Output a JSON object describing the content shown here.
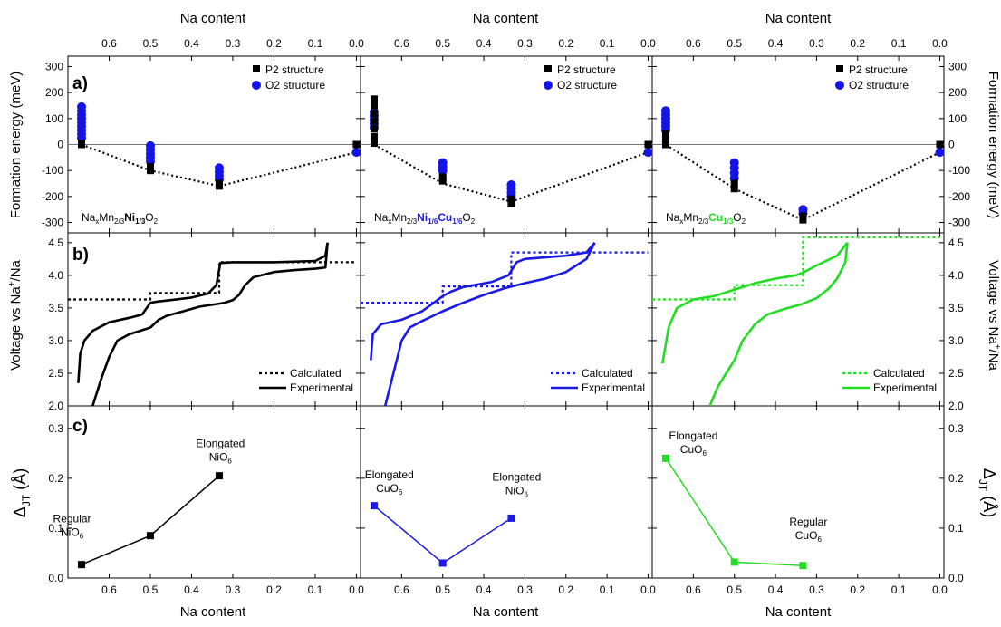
{
  "figure": {
    "top_xlabel": "Na content",
    "bottom_xlabel": "Na content",
    "panel_letters": [
      "a)",
      "b)",
      "c)"
    ],
    "ylabels": {
      "formation": "Formation energy (meV)",
      "voltage_pre": "Voltage vs Na",
      "voltage_sup": "+",
      "voltage_post": "/Na",
      "dist_main": "Δ",
      "dist_sub": "JT",
      "dist_unit": " (Å)"
    },
    "x_ticks": [
      "0.6",
      "0.5",
      "0.4",
      "0.3",
      "0.2",
      "0.1",
      "0.0"
    ],
    "formation_ticks": [
      "300",
      "200",
      "100",
      "0",
      "-100",
      "-200",
      "-300"
    ],
    "voltage_ticks": [
      "4.5",
      "4.0",
      "3.5",
      "3.0",
      "2.5",
      "2.0"
    ],
    "dist_ticks": [
      "0.3",
      "0.2",
      "0.1",
      "0.0"
    ],
    "legend_a": {
      "p2": "P2 structure",
      "o2": "O2 structure"
    },
    "legend_b": {
      "calc": "Calculated",
      "exp": "Experimental"
    }
  },
  "compositions": [
    {
      "parts": [
        [
          "Na",
          "n"
        ],
        [
          "x",
          "sub"
        ],
        [
          "Mn",
          "n"
        ],
        [
          "2/3",
          "sub"
        ],
        [
          "Ni",
          "b"
        ],
        [
          "1/3",
          "bsub"
        ],
        [
          "O",
          "n"
        ],
        [
          "2",
          "sub"
        ]
      ],
      "color": "#000000"
    },
    {
      "parts": [
        [
          "Na",
          "n"
        ],
        [
          "x",
          "sub"
        ],
        [
          "Mn",
          "n"
        ],
        [
          "2/3",
          "sub"
        ],
        [
          "Ni",
          "b"
        ],
        [
          "1/6",
          "bsub"
        ],
        [
          "Cu",
          "b"
        ],
        [
          "1/6",
          "bsub"
        ],
        [
          "O",
          "n"
        ],
        [
          "2",
          "sub"
        ]
      ],
      "color": "#1a1ae6"
    },
    {
      "parts": [
        [
          "Na",
          "n"
        ],
        [
          "x",
          "sub"
        ],
        [
          "Mn",
          "n"
        ],
        [
          "2/3",
          "sub"
        ],
        [
          "Cu",
          "b"
        ],
        [
          "1/3",
          "bsub"
        ],
        [
          "O",
          "n"
        ],
        [
          "2",
          "sub"
        ]
      ],
      "color": "#22dd22"
    }
  ],
  "chart_data": [
    {
      "type": "scatter",
      "panel": "a",
      "ylabel": "Formation energy (meV)",
      "xlim": [
        0.7,
        -0.01
      ],
      "ylim": [
        -340,
        340
      ],
      "columns": [
        {
          "color": "#000000",
          "p2": [
            [
              0.667,
              0
            ],
            [
              0.667,
              5
            ],
            [
              0.5,
              -100
            ],
            [
              0.5,
              -85
            ],
            [
              0.333,
              -160
            ],
            [
              0.333,
              -150
            ],
            [
              0,
              0
            ]
          ],
          "o2": [
            [
              0.667,
              145
            ],
            [
              0.667,
              130
            ],
            [
              0.667,
              115
            ],
            [
              0.667,
              100
            ],
            [
              0.667,
              85
            ],
            [
              0.667,
              70
            ],
            [
              0.667,
              55
            ],
            [
              0.667,
              40
            ],
            [
              0.667,
              25
            ],
            [
              0.5,
              -5
            ],
            [
              0.5,
              -20
            ],
            [
              0.5,
              -35
            ],
            [
              0.5,
              -50
            ],
            [
              0.5,
              -65
            ],
            [
              0.333,
              -90
            ],
            [
              0.333,
              -105
            ],
            [
              0.333,
              -120
            ],
            [
              0.333,
              -135
            ],
            [
              0,
              -30
            ]
          ],
          "hull": [
            [
              0.667,
              0
            ],
            [
              0.5,
              -100
            ],
            [
              0.333,
              -160
            ],
            [
              0,
              -30
            ]
          ]
        },
        {
          "color": "#1a1ae6",
          "p2": [
            [
              0.667,
              175
            ],
            [
              0.667,
              150
            ],
            [
              0.667,
              120
            ],
            [
              0.667,
              90
            ],
            [
              0.667,
              60
            ],
            [
              0.667,
              30
            ],
            [
              0.667,
              5
            ],
            [
              0.5,
              -140
            ],
            [
              0.5,
              -125
            ],
            [
              0.333,
              -225
            ],
            [
              0.333,
              -210
            ],
            [
              0,
              0
            ]
          ],
          "o2": [
            [
              0.667,
              125
            ],
            [
              0.667,
              110
            ],
            [
              0.667,
              95
            ],
            [
              0.667,
              80
            ],
            [
              0.667,
              65
            ],
            [
              0.5,
              -70
            ],
            [
              0.5,
              -85
            ],
            [
              0.5,
              -100
            ],
            [
              0.333,
              -155
            ],
            [
              0.333,
              -170
            ],
            [
              0.333,
              -185
            ],
            [
              0.333,
              -200
            ],
            [
              0,
              -30
            ]
          ],
          "hull": [
            [
              0.667,
              0
            ],
            [
              0.5,
              -150
            ],
            [
              0.333,
              -220
            ],
            [
              0,
              -30
            ]
          ]
        },
        {
          "color": "#22dd22",
          "p2": [
            [
              0.667,
              0
            ],
            [
              0.667,
              20
            ],
            [
              0.667,
              40
            ],
            [
              0.5,
              -170
            ],
            [
              0.5,
              -150
            ],
            [
              0.333,
              -290
            ],
            [
              0.333,
              -275
            ],
            [
              0,
              0
            ]
          ],
          "o2": [
            [
              0.667,
              130
            ],
            [
              0.667,
              115
            ],
            [
              0.667,
              100
            ],
            [
              0.667,
              85
            ],
            [
              0.667,
              70
            ],
            [
              0.667,
              55
            ],
            [
              0.5,
              -70
            ],
            [
              0.5,
              -90
            ],
            [
              0.5,
              -110
            ],
            [
              0.5,
              -130
            ],
            [
              0.333,
              -250
            ],
            [
              0.333,
              -265
            ],
            [
              0,
              -30
            ]
          ],
          "hull": [
            [
              0.667,
              0
            ],
            [
              0.5,
              -170
            ],
            [
              0.333,
              -290
            ],
            [
              0,
              -30
            ]
          ]
        }
      ]
    },
    {
      "type": "line",
      "panel": "b",
      "ylabel": "Voltage vs Na+/Na",
      "xlim": [
        0.7,
        -0.01
      ],
      "ylim": [
        2.0,
        4.65
      ],
      "columns": [
        {
          "color": "#000000",
          "calculated": [
            [
              0.7,
              3.63
            ],
            [
              0.5,
              3.63
            ],
            [
              0.5,
              3.73
            ],
            [
              0.333,
              3.73
            ],
            [
              0.333,
              4.2
            ],
            [
              0.0,
              4.2
            ]
          ],
          "charge": [
            [
              0.64,
              2.0
            ],
            [
              0.62,
              2.4
            ],
            [
              0.6,
              2.75
            ],
            [
              0.58,
              3.0
            ],
            [
              0.55,
              3.1
            ],
            [
              0.5,
              3.2
            ],
            [
              0.48,
              3.32
            ],
            [
              0.46,
              3.38
            ],
            [
              0.42,
              3.45
            ],
            [
              0.38,
              3.52
            ],
            [
              0.34,
              3.56
            ],
            [
              0.32,
              3.58
            ],
            [
              0.3,
              3.62
            ],
            [
              0.285,
              3.7
            ],
            [
              0.27,
              3.85
            ],
            [
              0.25,
              3.97
            ],
            [
              0.2,
              4.05
            ],
            [
              0.15,
              4.08
            ],
            [
              0.1,
              4.1
            ],
            [
              0.075,
              4.12
            ],
            [
              0.07,
              4.5
            ]
          ],
          "discharge": [
            [
              0.07,
              4.5
            ],
            [
              0.075,
              4.3
            ],
            [
              0.1,
              4.22
            ],
            [
              0.2,
              4.2
            ],
            [
              0.3,
              4.2
            ],
            [
              0.33,
              4.19
            ],
            [
              0.34,
              3.85
            ],
            [
              0.36,
              3.72
            ],
            [
              0.4,
              3.66
            ],
            [
              0.45,
              3.62
            ],
            [
              0.48,
              3.6
            ],
            [
              0.5,
              3.58
            ],
            [
              0.52,
              3.4
            ],
            [
              0.55,
              3.35
            ],
            [
              0.6,
              3.28
            ],
            [
              0.64,
              3.15
            ],
            [
              0.66,
              3.0
            ],
            [
              0.67,
              2.8
            ],
            [
              0.675,
              2.35
            ]
          ]
        },
        {
          "color": "#1a1ae6",
          "calculated": [
            [
              0.7,
              3.58
            ],
            [
              0.5,
              3.58
            ],
            [
              0.5,
              3.83
            ],
            [
              0.333,
              3.83
            ],
            [
              0.333,
              4.35
            ],
            [
              0.0,
              4.35
            ]
          ],
          "charge": [
            [
              0.64,
              2.0
            ],
            [
              0.62,
              2.5
            ],
            [
              0.6,
              3.0
            ],
            [
              0.58,
              3.2
            ],
            [
              0.55,
              3.3
            ],
            [
              0.5,
              3.45
            ],
            [
              0.45,
              3.58
            ],
            [
              0.4,
              3.7
            ],
            [
              0.35,
              3.8
            ],
            [
              0.3,
              3.88
            ],
            [
              0.25,
              3.95
            ],
            [
              0.2,
              4.05
            ],
            [
              0.15,
              4.25
            ],
            [
              0.13,
              4.5
            ]
          ],
          "discharge": [
            [
              0.13,
              4.5
            ],
            [
              0.15,
              4.35
            ],
            [
              0.2,
              4.3
            ],
            [
              0.3,
              4.25
            ],
            [
              0.32,
              4.2
            ],
            [
              0.34,
              4.0
            ],
            [
              0.38,
              3.9
            ],
            [
              0.45,
              3.82
            ],
            [
              0.48,
              3.75
            ],
            [
              0.5,
              3.68
            ],
            [
              0.55,
              3.45
            ],
            [
              0.6,
              3.32
            ],
            [
              0.65,
              3.25
            ],
            [
              0.67,
              3.1
            ],
            [
              0.675,
              2.7
            ]
          ]
        },
        {
          "color": "#22dd22",
          "calculated": [
            [
              0.7,
              3.63
            ],
            [
              0.5,
              3.63
            ],
            [
              0.5,
              3.85
            ],
            [
              0.333,
              3.85
            ],
            [
              0.333,
              4.58
            ],
            [
              0.0,
              4.58
            ]
          ],
          "charge": [
            [
              0.56,
              2.0
            ],
            [
              0.54,
              2.3
            ],
            [
              0.5,
              2.7
            ],
            [
              0.48,
              3.0
            ],
            [
              0.45,
              3.25
            ],
            [
              0.42,
              3.4
            ],
            [
              0.38,
              3.48
            ],
            [
              0.34,
              3.55
            ],
            [
              0.3,
              3.65
            ],
            [
              0.27,
              3.8
            ],
            [
              0.25,
              3.95
            ],
            [
              0.23,
              4.2
            ],
            [
              0.225,
              4.5
            ]
          ],
          "discharge": [
            [
              0.225,
              4.5
            ],
            [
              0.25,
              4.3
            ],
            [
              0.3,
              4.15
            ],
            [
              0.33,
              4.05
            ],
            [
              0.35,
              4.0
            ],
            [
              0.4,
              3.95
            ],
            [
              0.45,
              3.88
            ],
            [
              0.5,
              3.78
            ],
            [
              0.55,
              3.68
            ],
            [
              0.6,
              3.63
            ],
            [
              0.64,
              3.5
            ],
            [
              0.66,
              3.2
            ],
            [
              0.675,
              2.65
            ]
          ]
        }
      ]
    },
    {
      "type": "line",
      "panel": "c",
      "ylabel": "ΔJT (Å)",
      "xlim": [
        0.7,
        -0.01
      ],
      "ylim": [
        0.0,
        0.345
      ],
      "columns": [
        {
          "color": "#000000",
          "points": [
            [
              0.667,
              0.027
            ],
            [
              0.5,
              0.085
            ],
            [
              0.333,
              0.205
            ]
          ],
          "annotations": [
            {
              "lines": [
                "Regular",
                "NiO",
                "6"
              ],
              "x": 0.69,
              "y": 0.112
            },
            {
              "lines": [
                "Elongated",
                "NiO",
                "6"
              ],
              "x": 0.33,
              "y": 0.262
            }
          ]
        },
        {
          "color": "#1a1ae6",
          "points": [
            [
              0.667,
              0.145
            ],
            [
              0.5,
              0.03
            ],
            [
              0.333,
              0.12
            ]
          ],
          "annotations": [
            {
              "lines": [
                "Elongated",
                "CuO",
                "6"
              ],
              "x": 0.63,
              "y": 0.2
            },
            {
              "lines": [
                "Elongated",
                "NiO",
                "6"
              ],
              "x": 0.32,
              "y": 0.195
            }
          ]
        },
        {
          "color": "#22dd22",
          "points": [
            [
              0.667,
              0.24
            ],
            [
              0.5,
              0.032
            ],
            [
              0.333,
              0.025
            ]
          ],
          "annotations": [
            {
              "lines": [
                "Elongated",
                "CuO",
                "6"
              ],
              "x": 0.6,
              "y": 0.278
            },
            {
              "lines": [
                "Regular",
                "CuO",
                "6"
              ],
              "x": 0.32,
              "y": 0.105
            }
          ]
        }
      ]
    }
  ]
}
